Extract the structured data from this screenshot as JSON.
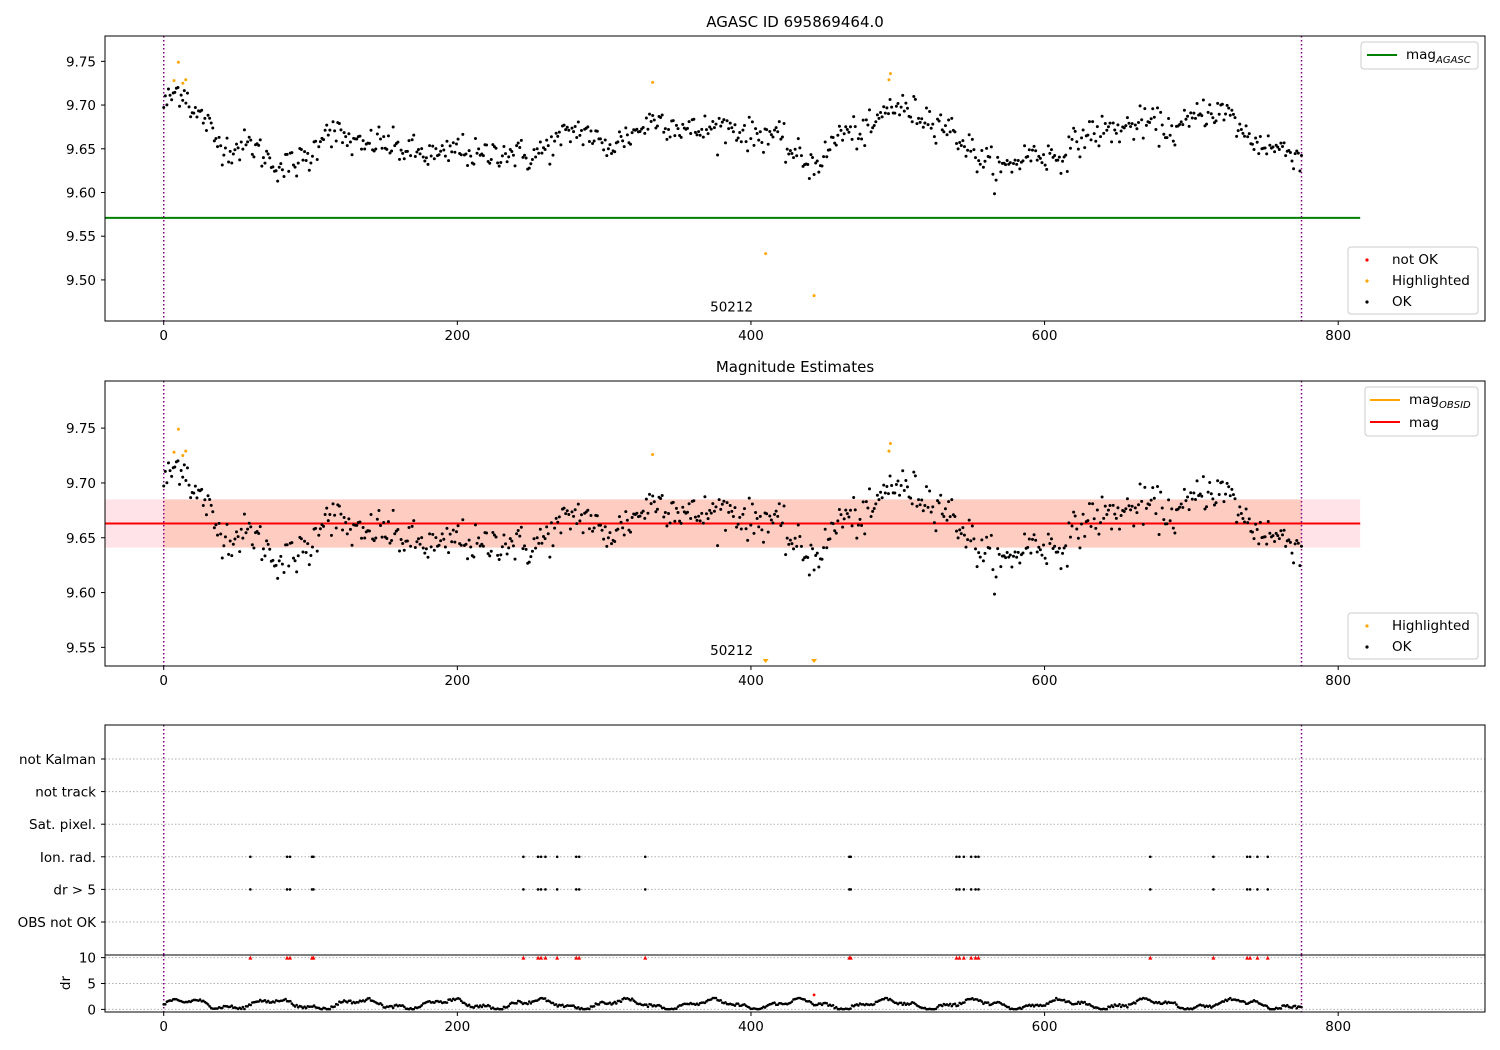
{
  "colors": {
    "ok": "#000000",
    "highlighted": "#ffa500",
    "not_ok": "#ff0000",
    "agasc_line": "#008000",
    "obsid_line": "#ffa500",
    "mag_line": "#ff0000",
    "mag_band": "#ffc0cb",
    "obsid_band": "#ffa07a",
    "obs_boundary": "#800080"
  },
  "chart_data": [
    {
      "type": "scatter",
      "panel": "agasc",
      "title": "AGASC ID 695869464.0",
      "x_ticks": [
        0,
        200,
        400,
        600,
        800
      ],
      "y_ticks": [
        "9.50",
        "9.55",
        "9.60",
        "9.65",
        "9.70",
        "9.75"
      ],
      "xlim": [
        -40,
        900
      ],
      "ylim": [
        9.453,
        9.779
      ],
      "annotation": "50212",
      "annotation_pos": [
        380,
        9.466
      ],
      "obs_boundaries": [
        0,
        775
      ],
      "mag_agasc": 9.571,
      "mag_agasc_xrange": [
        -40,
        815
      ],
      "highlighted_points": [
        [
          7,
          9.728
        ],
        [
          10,
          9.749
        ],
        [
          13,
          9.725
        ],
        [
          15,
          9.729
        ],
        [
          333,
          9.726
        ],
        [
          494,
          9.729
        ],
        [
          495,
          9.736
        ],
        [
          410,
          9.53
        ],
        [
          443,
          9.482
        ]
      ],
      "legend_lines": [
        {
          "label": "mag",
          "sub": "AGASC"
        }
      ],
      "legend_points": [
        "not OK",
        "Highlighted",
        "OK"
      ],
      "ok_anchors": [
        [
          0,
          9.7
        ],
        [
          10,
          9.718
        ],
        [
          16,
          9.712
        ],
        [
          20,
          9.69
        ],
        [
          28,
          9.685
        ],
        [
          35,
          9.66
        ],
        [
          45,
          9.65
        ],
        [
          60,
          9.655
        ],
        [
          70,
          9.64
        ],
        [
          80,
          9.628
        ],
        [
          100,
          9.64
        ],
        [
          110,
          9.675
        ],
        [
          120,
          9.665
        ],
        [
          135,
          9.65
        ],
        [
          145,
          9.66
        ],
        [
          160,
          9.65
        ],
        [
          175,
          9.645
        ],
        [
          190,
          9.64
        ],
        [
          200,
          9.652
        ],
        [
          215,
          9.64
        ],
        [
          230,
          9.648
        ],
        [
          250,
          9.64
        ],
        [
          265,
          9.655
        ],
        [
          280,
          9.672
        ],
        [
          290,
          9.668
        ],
        [
          300,
          9.65
        ],
        [
          320,
          9.668
        ],
        [
          335,
          9.685
        ],
        [
          360,
          9.67
        ],
        [
          385,
          9.676
        ],
        [
          400,
          9.665
        ],
        [
          415,
          9.668
        ],
        [
          425,
          9.65
        ],
        [
          440,
          9.632
        ],
        [
          450,
          9.64
        ],
        [
          460,
          9.668
        ],
        [
          480,
          9.668
        ],
        [
          495,
          9.7
        ],
        [
          510,
          9.692
        ],
        [
          530,
          9.68
        ],
        [
          540,
          9.665
        ],
        [
          555,
          9.64
        ],
        [
          570,
          9.625
        ],
        [
          590,
          9.645
        ],
        [
          610,
          9.64
        ],
        [
          630,
          9.668
        ],
        [
          650,
          9.672
        ],
        [
          670,
          9.68
        ],
        [
          690,
          9.67
        ],
        [
          710,
          9.695
        ],
        [
          725,
          9.69
        ],
        [
          740,
          9.66
        ],
        [
          760,
          9.65
        ],
        [
          775,
          9.643
        ]
      ],
      "ok_spread": 0.012,
      "ok_count": 720
    },
    {
      "type": "scatter",
      "panel": "estimates",
      "title": "Magnitude Estimates",
      "x_ticks": [
        0,
        200,
        400,
        600,
        800
      ],
      "y_ticks": [
        "9.55",
        "9.60",
        "9.65",
        "9.70",
        "9.75"
      ],
      "xlim": [
        -40,
        900
      ],
      "ylim": [
        9.533,
        9.793
      ],
      "annotation": "50212",
      "annotation_pos": [
        380,
        9.545
      ],
      "obs_boundaries": [
        0,
        775
      ],
      "mag": 9.663,
      "mag_band": [
        9.641,
        9.685
      ],
      "mag_obsid": 9.663,
      "obsid_band": [
        9.641,
        9.685
      ],
      "band_xrange": [
        -40,
        815
      ],
      "highlighted_points": [
        [
          7,
          9.728
        ],
        [
          10,
          9.749
        ],
        [
          13,
          9.725
        ],
        [
          15,
          9.729
        ],
        [
          333,
          9.726
        ],
        [
          494,
          9.729
        ],
        [
          495,
          9.736
        ]
      ],
      "highlighted_below": [
        410,
        443
      ],
      "legend_lines": [
        {
          "label": "mag",
          "sub": "OBSID"
        },
        {
          "label": "mag",
          "sub": ""
        }
      ],
      "legend_points": [
        "Highlighted",
        "OK"
      ]
    },
    {
      "type": "scatter",
      "panel": "flags",
      "categories": [
        "OBS not OK",
        "dr > 5",
        "Ion. rad.",
        "Sat. pixel.",
        "not track",
        "not Kalman"
      ],
      "x_ticks": [
        0,
        200,
        400,
        600,
        800
      ],
      "xlim": [
        -40,
        900
      ],
      "obs_boundaries": [
        0,
        775
      ],
      "flag_times": [
        59,
        84,
        86,
        101,
        102,
        245,
        255,
        257,
        260,
        268,
        281,
        283,
        328,
        467,
        468,
        540,
        542,
        545,
        550,
        553,
        555,
        672,
        715,
        738,
        740,
        745,
        752
      ],
      "flagged_rows": [
        "dr > 5",
        "Ion. rad."
      ]
    },
    {
      "type": "scatter",
      "panel": "dr",
      "ylabel": "dr",
      "y_ticks": [
        "0",
        "5",
        "10"
      ],
      "x_ticks": [
        0,
        200,
        400,
        600,
        800
      ],
      "xlim": [
        -40,
        900
      ],
      "ylim": [
        -0.5,
        10.5
      ],
      "obs_boundaries": [
        0,
        775
      ],
      "outlier": [
        443,
        2.8
      ],
      "clipped_value": 10
    }
  ]
}
